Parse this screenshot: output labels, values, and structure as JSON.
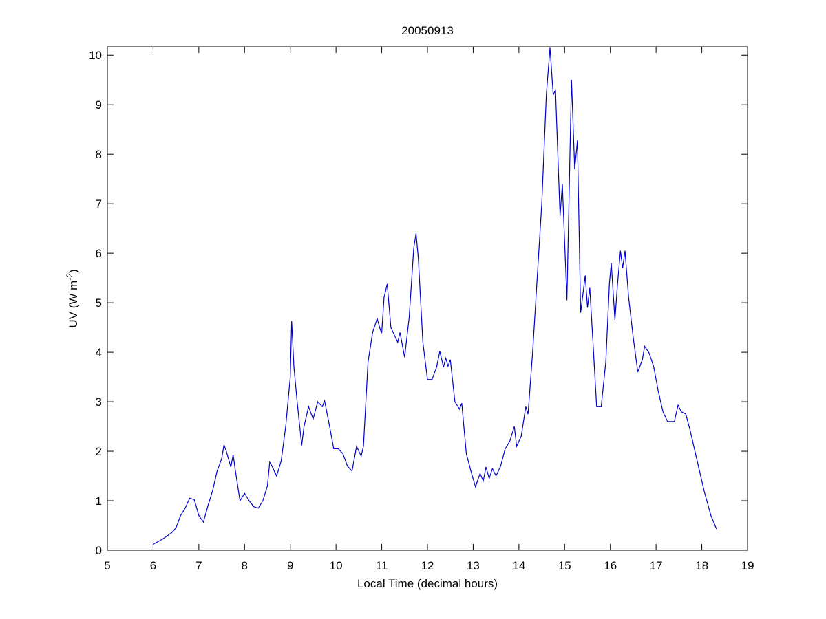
{
  "chart_data": {
    "type": "line",
    "title": "20050913",
    "xlabel": "Local Time (decimal hours)",
    "ylabel": {
      "base": "UV (W m",
      "sup": "-2",
      "end": ")"
    },
    "xlim": [
      5,
      19
    ],
    "xticks": [
      5,
      6,
      7,
      8,
      9,
      10,
      11,
      12,
      13,
      14,
      15,
      16,
      17,
      18,
      19
    ],
    "ylim": [
      0,
      10.17
    ],
    "yticks": [
      0,
      1,
      2,
      3,
      4,
      5,
      6,
      7,
      8,
      9,
      10
    ],
    "grid": false,
    "series": [
      {
        "color": "#0000c8",
        "x": [
          6.0,
          6.2,
          6.4,
          6.5,
          6.6,
          6.7,
          6.8,
          6.9,
          7.0,
          7.1,
          7.2,
          7.3,
          7.4,
          7.5,
          7.55,
          7.6,
          7.7,
          7.75,
          7.8,
          7.9,
          8.0,
          8.1,
          8.2,
          8.3,
          8.4,
          8.5,
          8.55,
          8.6,
          8.7,
          8.8,
          8.9,
          9.0,
          9.03,
          9.08,
          9.15,
          9.25,
          9.3,
          9.4,
          9.5,
          9.6,
          9.7,
          9.75,
          9.85,
          9.95,
          10.05,
          10.15,
          10.25,
          10.35,
          10.45,
          10.55,
          10.6,
          10.7,
          10.8,
          10.9,
          10.97,
          11.0,
          11.05,
          11.12,
          11.2,
          11.3,
          11.35,
          11.4,
          11.5,
          11.6,
          11.7,
          11.75,
          11.8,
          11.9,
          12.0,
          12.1,
          12.2,
          12.27,
          12.35,
          12.4,
          12.45,
          12.5,
          12.6,
          12.7,
          12.75,
          12.85,
          12.95,
          13.05,
          13.15,
          13.22,
          13.28,
          13.35,
          13.42,
          13.5,
          13.6,
          13.7,
          13.8,
          13.9,
          13.95,
          14.05,
          14.15,
          14.2,
          14.3,
          14.4,
          14.5,
          14.6,
          14.68,
          14.75,
          14.8,
          14.9,
          14.95,
          15.05,
          15.15,
          15.22,
          15.28,
          15.35,
          15.45,
          15.5,
          15.55,
          15.62,
          15.7,
          15.8,
          15.9,
          15.98,
          16.02,
          16.1,
          16.15,
          16.22,
          16.27,
          16.32,
          16.4,
          16.5,
          16.6,
          16.7,
          16.75,
          16.85,
          16.95,
          17.05,
          17.15,
          17.25,
          17.4,
          17.48,
          17.55,
          17.65,
          17.75,
          17.9,
          18.05,
          18.2,
          18.32
        ],
        "values": [
          0.12,
          0.22,
          0.35,
          0.45,
          0.7,
          0.85,
          1.05,
          1.02,
          0.7,
          0.57,
          0.9,
          1.2,
          1.6,
          1.85,
          2.13,
          2.0,
          1.68,
          1.93,
          1.6,
          1.0,
          1.15,
          1.0,
          0.88,
          0.85,
          1.0,
          1.3,
          1.78,
          1.7,
          1.5,
          1.8,
          2.5,
          3.5,
          4.63,
          3.7,
          3.0,
          2.12,
          2.5,
          2.9,
          2.65,
          3.0,
          2.9,
          3.02,
          2.55,
          2.05,
          2.05,
          1.95,
          1.7,
          1.6,
          2.1,
          1.9,
          2.1,
          3.8,
          4.4,
          4.68,
          4.45,
          4.4,
          5.1,
          5.38,
          4.5,
          4.3,
          4.2,
          4.4,
          3.9,
          4.7,
          6.1,
          6.4,
          5.9,
          4.2,
          3.45,
          3.45,
          3.7,
          4.02,
          3.7,
          3.88,
          3.72,
          3.85,
          3.0,
          2.85,
          2.97,
          1.95,
          1.6,
          1.28,
          1.55,
          1.4,
          1.68,
          1.45,
          1.65,
          1.5,
          1.7,
          2.05,
          2.2,
          2.5,
          2.1,
          2.3,
          2.9,
          2.75,
          4.0,
          5.5,
          7.0,
          9.2,
          10.15,
          9.2,
          9.3,
          6.75,
          7.4,
          5.05,
          9.5,
          7.7,
          8.28,
          4.8,
          5.55,
          4.9,
          5.3,
          4.2,
          2.9,
          2.9,
          3.8,
          5.4,
          5.8,
          4.65,
          5.3,
          6.05,
          5.7,
          6.05,
          5.1,
          4.3,
          3.6,
          3.85,
          4.12,
          3.98,
          3.7,
          3.2,
          2.8,
          2.6,
          2.6,
          2.93,
          2.8,
          2.75,
          2.4,
          1.8,
          1.2,
          0.7,
          0.43
        ]
      }
    ]
  }
}
